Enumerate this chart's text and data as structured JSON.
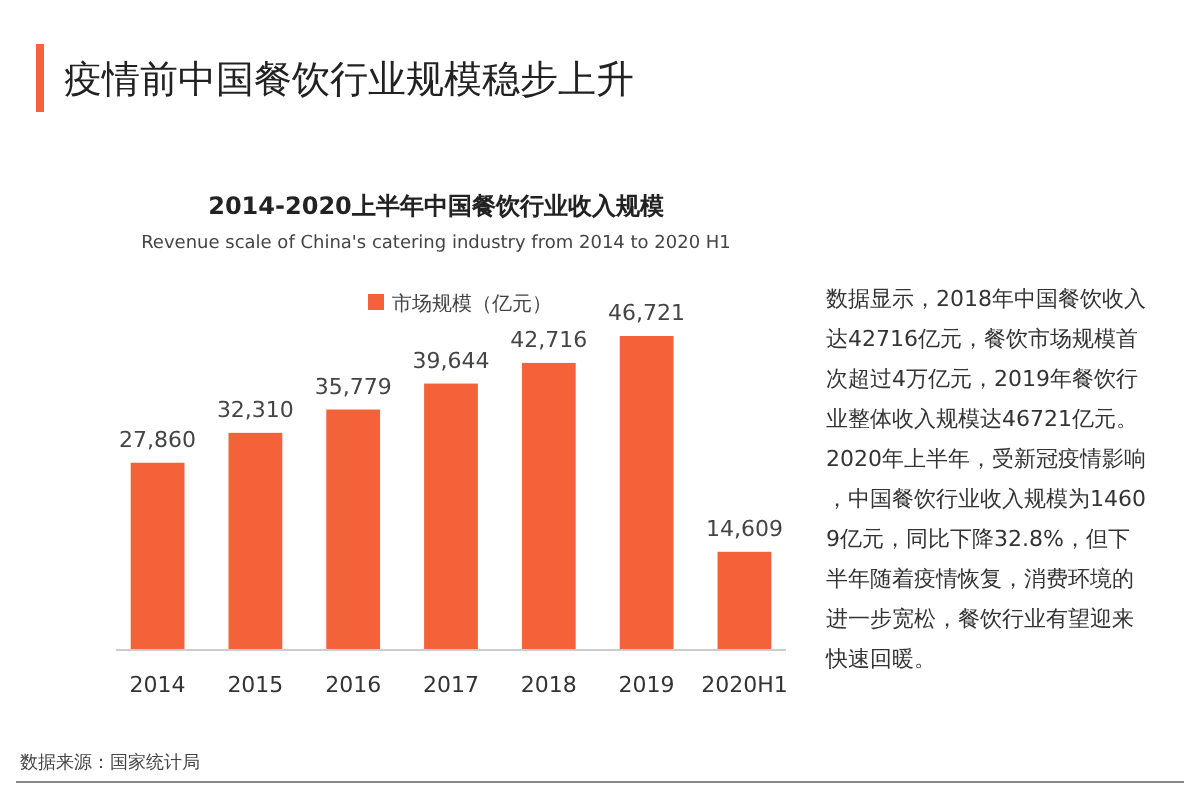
{
  "chart_data": {
    "type": "bar",
    "title": "2014-2020上半年中国餐饮行业收入规模",
    "subtitle": "Revenue scale  of China's catering industry from 2014 to 2020 H1",
    "categories": [
      "2014",
      "2015",
      "2016",
      "2017",
      "2018",
      "2019",
      "2020H1"
    ],
    "series": [
      {
        "name": "市场规模（亿元）",
        "color": "#f4623a",
        "values": [
          27860,
          32310,
          35779,
          39644,
          42716,
          46721,
          14609
        ],
        "value_labels": [
          "27,860",
          "32,310",
          "35,779",
          "39,644",
          "42,716",
          "46,721",
          "14,609"
        ]
      }
    ],
    "legend": "top",
    "grid": false,
    "tick_labels": "x",
    "annotations": [
      "疫情前中国餐饮行业规模稳步上升",
      "数据显示，2018年中国餐饮收入达42716亿元，餐饮市场规模首次超过4万亿元，2019年餐饮行业整体收入规模达46721亿元。2020年上半年，受新冠疫情影响，中国餐饮行业收入规模为14609亿元，同比下降32.8%，但下半年随着疫情恢复，消费环境的进一步宽松，餐饮行业有望迎来快速回暖。",
      "数据来源：国家统计局"
    ]
  }
}
